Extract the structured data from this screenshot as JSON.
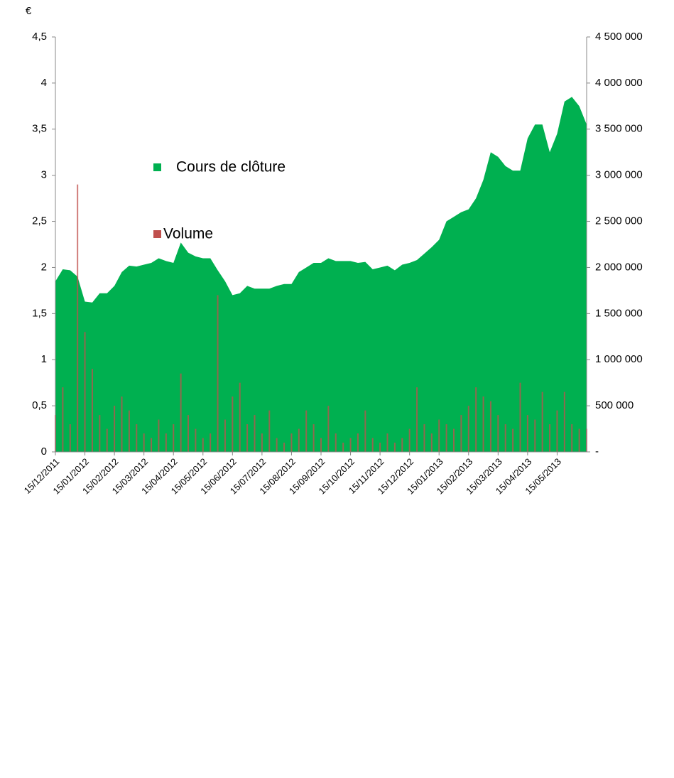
{
  "chart_data": {
    "type": "area_bar",
    "y_label": "€",
    "categories": [
      "15/12/2011",
      null,
      null,
      null,
      "15/01/2012",
      null,
      null,
      null,
      "15/02/2012",
      null,
      null,
      null,
      "15/03/2012",
      null,
      null,
      null,
      "15/04/2012",
      null,
      null,
      null,
      "15/05/2012",
      null,
      null,
      null,
      "15/06/2012",
      null,
      null,
      null,
      "15/07/2012",
      null,
      null,
      null,
      "15/08/2012",
      null,
      null,
      null,
      "15/09/2012",
      null,
      null,
      null,
      "15/10/2012",
      null,
      null,
      null,
      "15/11/2012",
      null,
      null,
      null,
      "15/12/2012",
      null,
      null,
      null,
      "15/01/2013",
      null,
      null,
      null,
      "15/02/2013",
      null,
      null,
      null,
      "15/03/2013",
      null,
      null,
      null,
      "15/04/2013",
      null,
      null,
      null,
      "15/05/2013",
      null,
      null,
      null,
      null
    ],
    "series": [
      {
        "name": "Cours de clôture",
        "color": "#00b050",
        "axis": "y",
        "values": [
          1.85,
          1.98,
          1.97,
          1.9,
          1.63,
          1.62,
          1.72,
          1.72,
          1.8,
          1.95,
          2.02,
          2.01,
          2.03,
          2.05,
          2.1,
          2.07,
          2.05,
          2.27,
          2.16,
          2.12,
          2.1,
          2.1,
          1.97,
          1.85,
          1.7,
          1.72,
          1.8,
          1.77,
          1.77,
          1.77,
          1.8,
          1.82,
          1.82,
          1.95,
          2.0,
          2.05,
          2.05,
          2.1,
          2.07,
          2.07,
          2.07,
          2.05,
          2.06,
          1.98,
          2.0,
          2.02,
          1.97,
          2.03,
          2.05,
          2.08,
          2.15,
          2.22,
          2.3,
          2.5,
          2.55,
          2.6,
          2.63,
          2.75,
          2.95,
          3.25,
          3.2,
          3.1,
          3.05,
          3.05,
          3.4,
          3.55,
          3.55,
          3.25,
          3.45,
          3.8,
          3.85,
          3.75,
          3.55
        ]
      },
      {
        "name": "Volume",
        "color": "#c0504d",
        "axis": "y2",
        "values": [
          400000,
          700000,
          300000,
          2900000,
          1300000,
          900000,
          400000,
          250000,
          500000,
          600000,
          450000,
          300000,
          200000,
          150000,
          350000,
          200000,
          300000,
          850000,
          400000,
          250000,
          150000,
          200000,
          1700000,
          350000,
          600000,
          750000,
          300000,
          400000,
          200000,
          450000,
          150000,
          100000,
          200000,
          250000,
          450000,
          300000,
          150000,
          500000,
          200000,
          100000,
          150000,
          200000,
          450000,
          150000,
          100000,
          200000,
          100000,
          150000,
          250000,
          700000,
          300000,
          200000,
          350000,
          300000,
          250000,
          400000,
          500000,
          700000,
          600000,
          550000,
          400000,
          300000,
          250000,
          750000,
          400000,
          350000,
          650000,
          300000,
          450000,
          650000,
          300000,
          250000,
          250000
        ]
      }
    ],
    "ylim": [
      0,
      4.5
    ],
    "yticks": [
      0,
      {
        "value": 0.5,
        "label": "0,5"
      },
      1,
      {
        "value": 1.5,
        "label": "1,5"
      },
      2,
      {
        "value": 2.5,
        "label": "2,5"
      },
      3,
      {
        "value": 3.5,
        "label": "3,5"
      },
      4,
      {
        "value": 4.5,
        "label": "4,5"
      }
    ],
    "y2lim": [
      0,
      4500000
    ],
    "y2ticks": [
      {
        "value": 0,
        "label": "-"
      },
      {
        "value": 500000,
        "label": "500 000"
      },
      {
        "value": 1000000,
        "label": "1 000 000"
      },
      {
        "value": 1500000,
        "label": "1 500 000"
      },
      {
        "value": 2000000,
        "label": "2 000 000"
      },
      {
        "value": 2500000,
        "label": "2 500 000"
      },
      {
        "value": 3000000,
        "label": "3 000 000"
      },
      {
        "value": 3500000,
        "label": "3 500 000"
      },
      {
        "value": 4000000,
        "label": "4 000 000"
      },
      {
        "value": 4500000,
        "label": "4 500 000"
      }
    ]
  }
}
